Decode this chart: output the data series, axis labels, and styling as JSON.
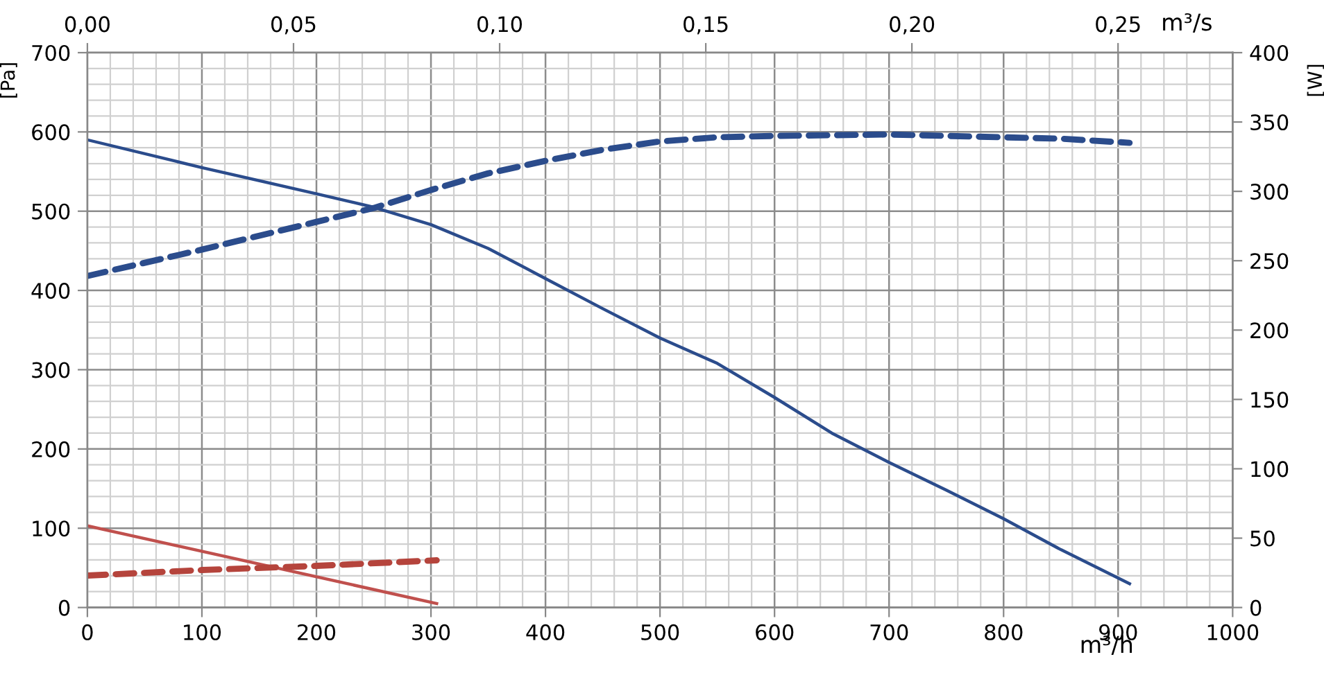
{
  "chart_data": {
    "type": "line",
    "xlabel": "m³/h",
    "ylabel": "[Pa]",
    "y2label": "[W]",
    "x2label": "m³/s",
    "xlim": [
      0,
      1000
    ],
    "xticks": [
      0,
      {
        "value": 20,
        "label": null
      },
      {
        "value": 40,
        "label": null
      },
      {
        "value": 60,
        "label": null
      },
      {
        "value": 80,
        "label": null
      },
      100,
      {
        "value": 120,
        "label": null
      },
      {
        "value": 140,
        "label": null
      },
      {
        "value": 160,
        "label": null
      },
      {
        "value": 180,
        "label": null
      },
      200,
      {
        "value": 220,
        "label": null
      },
      {
        "value": 240,
        "label": null
      },
      {
        "value": 260,
        "label": null
      },
      {
        "value": 280,
        "label": null
      },
      300,
      {
        "value": 320,
        "label": null
      },
      {
        "value": 340,
        "label": null
      },
      {
        "value": 360,
        "label": null
      },
      {
        "value": 380,
        "label": null
      },
      400,
      {
        "value": 420,
        "label": null
      },
      {
        "value": 440,
        "label": null
      },
      {
        "value": 460,
        "label": null
      },
      {
        "value": 480,
        "label": null
      },
      500,
      {
        "value": 520,
        "label": null
      },
      {
        "value": 540,
        "label": null
      },
      {
        "value": 560,
        "label": null
      },
      {
        "value": 580,
        "label": null
      },
      600,
      {
        "value": 620,
        "label": null
      },
      {
        "value": 640,
        "label": null
      },
      {
        "value": 660,
        "label": null
      },
      {
        "value": 680,
        "label": null
      },
      700,
      {
        "value": 720,
        "label": null
      },
      {
        "value": 740,
        "label": null
      },
      {
        "value": 760,
        "label": null
      },
      {
        "value": 780,
        "label": null
      },
      800,
      {
        "value": 820,
        "label": null
      },
      {
        "value": 840,
        "label": null
      },
      {
        "value": 860,
        "label": null
      },
      {
        "value": 880,
        "label": null
      },
      900,
      {
        "value": 920,
        "label": null
      },
      {
        "value": 940,
        "label": null
      },
      {
        "value": 960,
        "label": null
      },
      {
        "value": 980,
        "label": null
      },
      1000
    ],
    "ylim": [
      0,
      700
    ],
    "yticks": [
      0,
      {
        "value": 20,
        "label": null
      },
      {
        "value": 40,
        "label": null
      },
      {
        "value": 60,
        "label": null
      },
      {
        "value": 80,
        "label": null
      },
      100,
      {
        "value": 120,
        "label": null
      },
      {
        "value": 140,
        "label": null
      },
      {
        "value": 160,
        "label": null
      },
      {
        "value": 180,
        "label": null
      },
      200,
      {
        "value": 220,
        "label": null
      },
      {
        "value": 240,
        "label": null
      },
      {
        "value": 260,
        "label": null
      },
      {
        "value": 280,
        "label": null
      },
      300,
      {
        "value": 320,
        "label": null
      },
      {
        "value": 340,
        "label": null
      },
      {
        "value": 360,
        "label": null
      },
      {
        "value": 380,
        "label": null
      },
      400,
      {
        "value": 420,
        "label": null
      },
      {
        "value": 440,
        "label": null
      },
      {
        "value": 460,
        "label": null
      },
      {
        "value": 480,
        "label": null
      },
      500,
      {
        "value": 520,
        "label": null
      },
      {
        "value": 540,
        "label": null
      },
      {
        "value": 560,
        "label": null
      },
      {
        "value": 580,
        "label": null
      },
      600,
      {
        "value": 620,
        "label": null
      },
      {
        "value": 640,
        "label": null
      },
      {
        "value": 660,
        "label": null
      },
      {
        "value": 680,
        "label": null
      },
      700
    ],
    "y2lim": [
      0,
      400
    ],
    "y2ticks": [
      0,
      50,
      100,
      150,
      200,
      250,
      300,
      350,
      400
    ],
    "x2lim": [
      0,
      0.2778
    ],
    "x2ticks": [
      {
        "value": 0,
        "label": "0,00"
      },
      {
        "value": 0.05,
        "label": "0,05"
      },
      {
        "value": 0.1,
        "label": "0,10"
      },
      {
        "value": 0.15,
        "label": "0,15"
      },
      {
        "value": 0.2,
        "label": "0,20"
      },
      {
        "value": 0.25,
        "label": "0,25"
      }
    ],
    "grid": true,
    "legend": false,
    "marker": "none",
    "series": [
      {
        "color": "#2b4c8c",
        "line_style": "solid",
        "x": [
          0,
          100,
          200,
          250,
          300,
          350,
          400,
          450,
          500,
          550,
          600,
          650,
          700,
          750,
          800,
          850,
          910
        ],
        "values": [
          590,
          555,
          522,
          505,
          483,
          453,
          415,
          377,
          340,
          308,
          265,
          220,
          183,
          148,
          112,
          73,
          30
        ]
      },
      {
        "color": "#2b4c8c",
        "line_style": "dashed",
        "axis": "y2",
        "x": [
          0,
          100,
          200,
          250,
          300,
          350,
          400,
          450,
          500,
          550,
          600,
          700,
          800,
          850,
          910
        ],
        "values": [
          239,
          258,
          278,
          288,
          301,
          313,
          322,
          330,
          336,
          339,
          340,
          341,
          339,
          338,
          335
        ]
      },
      {
        "color": "#c0504d",
        "line_style": "solid",
        "x": [
          0,
          305
        ],
        "values": [
          103,
          5
        ]
      },
      {
        "color": "#b5443c",
        "line_style": "dashed",
        "axis": "y2",
        "x": [
          0,
          100,
          200,
          305
        ],
        "values": [
          23,
          27,
          30,
          34
        ]
      }
    ]
  }
}
